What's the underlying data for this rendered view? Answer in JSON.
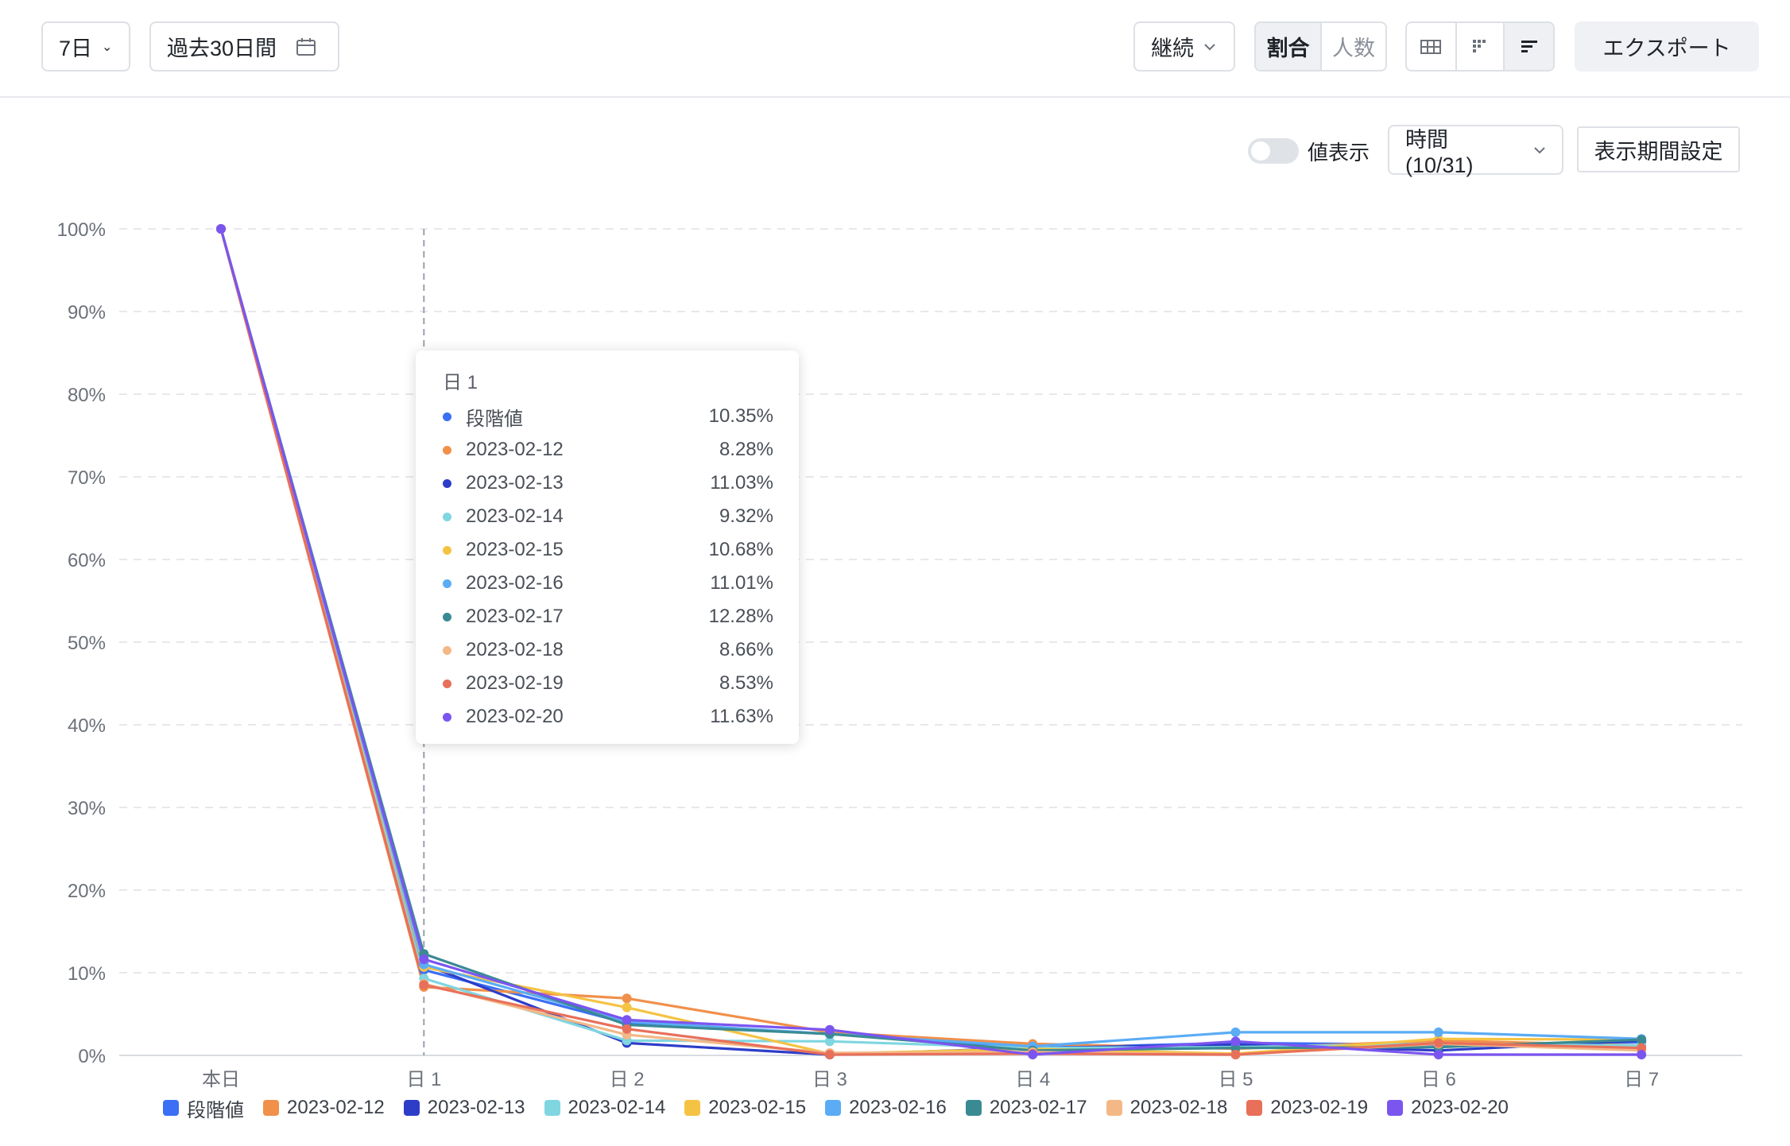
{
  "toolbar": {
    "period_select": "7日",
    "date_range": "過去30日間",
    "mode_select": "継続",
    "toggle_ratio": "割合",
    "toggle_count": "人数",
    "export": "エクスポート"
  },
  "subbar": {
    "value_display_label": "値表示",
    "time_select": "時間 (10/31)",
    "period_setting": "表示期間設定"
  },
  "tooltip": {
    "title": "日 1",
    "rows": [
      {
        "name": "段階値",
        "value": "10.35%",
        "color": "#3b6ff5"
      },
      {
        "name": "2023-02-12",
        "value": "8.28%",
        "color": "#f0904a"
      },
      {
        "name": "2023-02-13",
        "value": "11.03%",
        "color": "#2d3dc8"
      },
      {
        "name": "2023-02-14",
        "value": "9.32%",
        "color": "#7fd6e0"
      },
      {
        "name": "2023-02-15",
        "value": "10.68%",
        "color": "#f5c343"
      },
      {
        "name": "2023-02-16",
        "value": "11.01%",
        "color": "#5aacf5"
      },
      {
        "name": "2023-02-17",
        "value": "12.28%",
        "color": "#3a8a94"
      },
      {
        "name": "2023-02-18",
        "value": "8.66%",
        "color": "#f3b886"
      },
      {
        "name": "2023-02-19",
        "value": "8.53%",
        "color": "#e8705a"
      },
      {
        "name": "2023-02-20",
        "value": "11.63%",
        "color": "#7b55f0"
      }
    ]
  },
  "chart_data": {
    "type": "line",
    "categories": [
      "本日",
      "日 1",
      "日 2",
      "日 3",
      "日 4",
      "日 5",
      "日 6",
      "日 7"
    ],
    "ylim": [
      0,
      100
    ],
    "yticks": [
      "0%",
      "10%",
      "20%",
      "30%",
      "40%",
      "50%",
      "60%",
      "70%",
      "80%",
      "90%",
      "100%"
    ],
    "legend_position": "bottom",
    "grid": true,
    "highlight_category": "日 1",
    "series": [
      {
        "name": "段階値",
        "color": "#3b6ff5",
        "values": [
          100,
          10.35,
          3.9,
          2.6,
          0.9,
          1.5,
          1.3,
          1.6
        ]
      },
      {
        "name": "2023-02-12",
        "color": "#f0904a",
        "values": [
          100,
          8.28,
          6.9,
          2.8,
          1.4,
          0.8,
          1.8,
          1.2
        ]
      },
      {
        "name": "2023-02-13",
        "color": "#2d3dc8",
        "values": [
          100,
          11.03,
          1.5,
          0.1,
          0.9,
          1.3,
          0.6,
          1.8
        ]
      },
      {
        "name": "2023-02-14",
        "color": "#7fd6e0",
        "values": [
          100,
          9.32,
          1.8,
          1.7,
          0.9,
          1.0,
          1.4,
          1.2
        ]
      },
      {
        "name": "2023-02-15",
        "color": "#f5c343",
        "values": [
          100,
          10.68,
          5.8,
          0.2,
          0.8,
          0.2,
          2.0,
          1.9
        ]
      },
      {
        "name": "2023-02-16",
        "color": "#5aacf5",
        "values": [
          100,
          11.01,
          4.1,
          2.6,
          1.1,
          2.8,
          2.8,
          2.0
        ]
      },
      {
        "name": "2023-02-17",
        "color": "#3a8a94",
        "values": [
          100,
          12.28,
          3.7,
          2.6,
          0.6,
          0.9,
          1.0,
          1.9
        ]
      },
      {
        "name": "2023-02-18",
        "color": "#f3b886",
        "values": [
          100,
          8.66,
          2.5,
          0.3,
          0.4,
          0.1,
          1.4,
          0.6
        ]
      },
      {
        "name": "2023-02-19",
        "color": "#e8705a",
        "values": [
          100,
          8.53,
          3.2,
          0.1,
          0.2,
          0.1,
          1.5,
          0.9
        ]
      },
      {
        "name": "2023-02-20",
        "color": "#7b55f0",
        "values": [
          100,
          11.63,
          4.3,
          3.1,
          0.1,
          1.7,
          0.1,
          0.1
        ]
      }
    ]
  }
}
